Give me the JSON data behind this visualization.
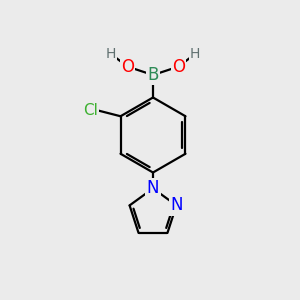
{
  "bg_color": "#ebebeb",
  "bond_color": "#000000",
  "bond_width": 1.6,
  "atom_colors": {
    "B": "#2e8b57",
    "O": "#ff0000",
    "Cl": "#3cb030",
    "N": "#0000ff",
    "C": "#000000",
    "H": "#607070"
  },
  "font_size_atoms": 12,
  "font_size_H": 10,
  "font_size_Cl": 11
}
